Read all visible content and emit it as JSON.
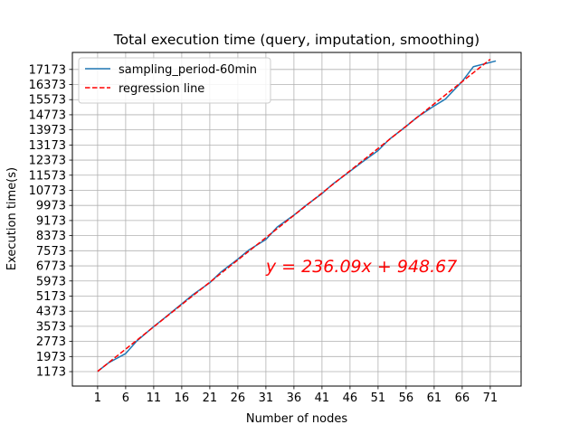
{
  "chart_data": {
    "type": "line",
    "title": "Total execution time (query, imputation, smoothing)",
    "xlabel": "Number of nodes",
    "ylabel": "Execution time(s)",
    "xlim": [
      -3.5,
      76.5
    ],
    "ylim": [
      408,
      18073
    ],
    "xticks": [
      1,
      6,
      11,
      16,
      21,
      26,
      31,
      36,
      41,
      46,
      51,
      56,
      61,
      66,
      71
    ],
    "yticks": [
      1173,
      1973,
      2773,
      3573,
      4373,
      5173,
      5973,
      6773,
      7573,
      8373,
      9173,
      9973,
      10773,
      11573,
      12373,
      13173,
      13973,
      14773,
      15573,
      16373,
      17173
    ],
    "grid": true,
    "legend_position": "top-left",
    "series": [
      {
        "name": "sampling_period-60min",
        "color": "#1f77b4",
        "style": "solid",
        "x": [
          1,
          3,
          6,
          8,
          11,
          13,
          16,
          18,
          21,
          23,
          26,
          28,
          31,
          33,
          36,
          38,
          41,
          43,
          46,
          48,
          51,
          53,
          56,
          58,
          61,
          63,
          66,
          68,
          72
        ],
        "y": [
          1185,
          1650,
          2130,
          2800,
          3560,
          4030,
          4760,
          5250,
          5880,
          6450,
          7130,
          7620,
          8170,
          8820,
          9460,
          9940,
          10600,
          11120,
          11780,
          12230,
          12880,
          13470,
          14160,
          14650,
          15240,
          15600,
          16540,
          17320,
          17620
        ]
      },
      {
        "name": "regression line",
        "color": "#ff0000",
        "style": "dashed",
        "x": [
          1,
          71
        ],
        "y": [
          1184.76,
          17711.06
        ]
      }
    ],
    "annotations": [
      {
        "text": "y = 236.09x + 948.67",
        "color": "#ff0000",
        "x": 31,
        "y": 6780
      }
    ]
  }
}
